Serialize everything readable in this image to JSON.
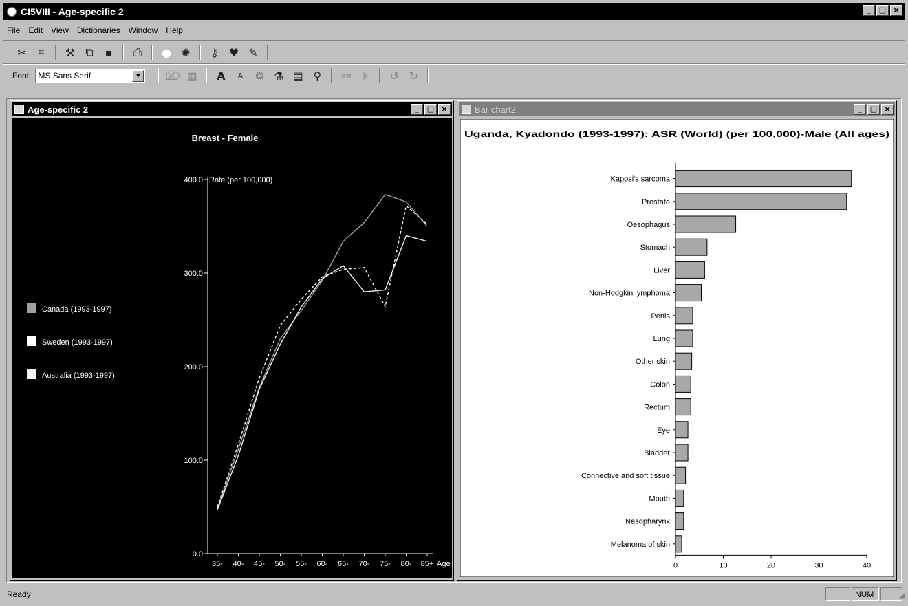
{
  "app": {
    "title": "CI5VIII - Age-specific 2",
    "controls": {
      "minimize": "_",
      "maximize": "□",
      "close": "×"
    }
  },
  "menu": {
    "items": [
      {
        "label": "File",
        "accel": "F",
        "rest": "ile"
      },
      {
        "label": "Edit",
        "accel": "E",
        "rest": "dit"
      },
      {
        "label": "View",
        "accel": "V",
        "rest": "iew"
      },
      {
        "label": "Dictionaries",
        "accel": "D",
        "rest": "ictionaries"
      },
      {
        "label": "Window",
        "accel": "W",
        "rest": "indow"
      },
      {
        "label": "Help",
        "accel": "H",
        "rest": "elp"
      }
    ]
  },
  "toolbar2": {
    "font_label": "Font:",
    "font_value": "MS Sans Serif"
  },
  "icons": {
    "toolbar1": [
      "scissors-icon",
      "select-icon",
      "pointer-icon",
      "copy-icon",
      "save-icon",
      "print-icon",
      "circle-icon",
      "earth-icon",
      "key-icon",
      "heart-icon",
      "pen-icon"
    ],
    "toolbar2": [
      "edit-icon",
      "grid-icon",
      "font-grow-icon",
      "font-shrink-icon",
      "color-icon",
      "paint-icon",
      "frame-icon",
      "zoom-icon",
      "disabled-tool-icon",
      "disabled-filter-icon",
      "rotate-left-icon",
      "rotate-right-icon"
    ]
  },
  "windows": {
    "age_specific": {
      "title": "Age-specific 2"
    },
    "bar_chart": {
      "title": "Bar chart2"
    }
  },
  "status": {
    "text": "Ready",
    "num": "NUM"
  },
  "chart_data": [
    {
      "type": "line",
      "title": "Breast - Female",
      "ylabel": "Rate (per 100,000)",
      "xlabel": "Age",
      "background": "#000000",
      "ylim": [
        0,
        400
      ],
      "yticks": [
        "0.0",
        "100.0",
        "200.0",
        "300.0",
        "400.0"
      ],
      "categories": [
        "35-",
        "40-",
        "45-",
        "50-",
        "55-",
        "60-",
        "65-",
        "70-",
        "75-",
        "80-",
        "85+"
      ],
      "series": [
        {
          "name": "Canada (1993-1997)",
          "color": "#a0a0a0",
          "style": "solid",
          "values": [
            48,
            112,
            178,
            230,
            260,
            292,
            334,
            354,
            384,
            376,
            350
          ]
        },
        {
          "name": "Sweden (1993-1997)",
          "color": "#ffffff",
          "style": "dashed",
          "values": [
            50,
            117,
            188,
            244,
            272,
            296,
            304,
            306,
            264,
            372,
            352
          ]
        },
        {
          "name": "Australia (1993-1997)",
          "color": "#f2f2f2",
          "style": "solid",
          "values": [
            47,
            105,
            176,
            224,
            264,
            294,
            308,
            280,
            282,
            340,
            334
          ]
        }
      ],
      "legend_position": "left"
    },
    {
      "type": "bar",
      "orientation": "horizontal",
      "title": "Uganda, Kyadondo (1993-1997): ASR (World) (per 100,000)-Male (All ages)",
      "xlim": [
        0,
        40
      ],
      "xticks": [
        "0",
        "10",
        "20",
        "30",
        "40"
      ],
      "bar_color": "#a8a8a8",
      "categories": [
        "Kaposi's sarcoma",
        "Prostate",
        "Oesophagus",
        "Stomach",
        "Liver",
        "Non-Hodgkin lymphoma",
        "Penis",
        "Lung",
        "Other skin",
        "Colon",
        "Rectum",
        "Eye",
        "Bladder",
        "Connective and soft tissue",
        "Mouth",
        "Nasopharynx",
        "Melanoma of skin"
      ],
      "values": [
        36.8,
        35.8,
        12.6,
        6.6,
        6.1,
        5.4,
        3.6,
        3.6,
        3.4,
        3.2,
        3.2,
        2.6,
        2.6,
        2.1,
        1.7,
        1.7,
        1.3
      ],
      "grid": false
    }
  ]
}
